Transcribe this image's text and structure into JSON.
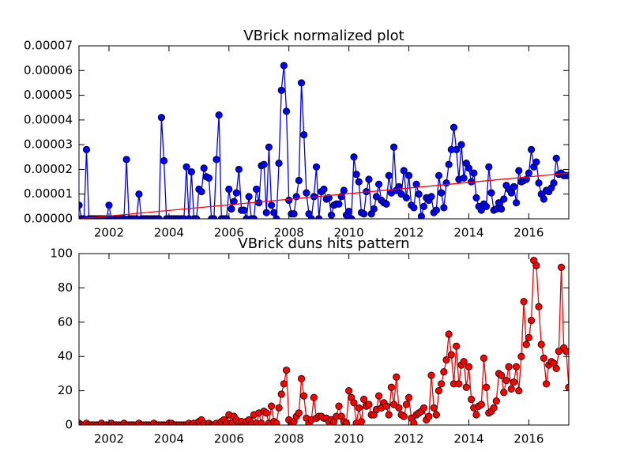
{
  "chart_data": [
    {
      "type": "line",
      "title": "VBrick normalized plot",
      "x": [
        2001,
        2001.083,
        2001.167,
        2001.25,
        2001.333,
        2001.417,
        2001.5,
        2001.583,
        2001.667,
        2001.75,
        2001.833,
        2001.917,
        2002,
        2002.083,
        2002.167,
        2002.25,
        2002.333,
        2002.417,
        2002.5,
        2002.583,
        2002.667,
        2002.75,
        2002.833,
        2002.917,
        2003,
        2003.083,
        2003.167,
        2003.25,
        2003.333,
        2003.417,
        2003.5,
        2003.583,
        2003.667,
        2003.75,
        2003.833,
        2003.917,
        2004,
        2004.083,
        2004.167,
        2004.25,
        2004.333,
        2004.417,
        2004.5,
        2004.583,
        2004.667,
        2004.75,
        2004.833,
        2004.917,
        2005,
        2005.083,
        2005.167,
        2005.25,
        2005.333,
        2005.417,
        2005.5,
        2005.583,
        2005.667,
        2005.75,
        2005.833,
        2005.917,
        2006,
        2006.083,
        2006.167,
        2006.25,
        2006.333,
        2006.417,
        2006.5,
        2006.583,
        2006.667,
        2006.75,
        2006.833,
        2006.917,
        2007,
        2007.083,
        2007.167,
        2007.25,
        2007.333,
        2007.417,
        2007.5,
        2007.583,
        2007.667,
        2007.75,
        2007.833,
        2007.917,
        2008,
        2008.083,
        2008.167,
        2008.25,
        2008.333,
        2008.417,
        2008.5,
        2008.583,
        2008.667,
        2008.75,
        2008.833,
        2008.917,
        2009,
        2009.083,
        2009.167,
        2009.25,
        2009.333,
        2009.417,
        2009.5,
        2009.583,
        2009.667,
        2009.75,
        2009.833,
        2009.917,
        2010,
        2010.083,
        2010.167,
        2010.25,
        2010.333,
        2010.417,
        2010.5,
        2010.583,
        2010.667,
        2010.75,
        2010.833,
        2010.917,
        2011,
        2011.083,
        2011.167,
        2011.25,
        2011.333,
        2011.417,
        2011.5,
        2011.583,
        2011.667,
        2011.75,
        2011.833,
        2011.917,
        2012,
        2012.083,
        2012.167,
        2012.25,
        2012.333,
        2012.417,
        2012.5,
        2012.583,
        2012.667,
        2012.75,
        2012.833,
        2012.917,
        2013,
        2013.083,
        2013.167,
        2013.25,
        2013.333,
        2013.417,
        2013.5,
        2013.583,
        2013.667,
        2013.75,
        2013.833,
        2013.917,
        2014,
        2014.083,
        2014.167,
        2014.25,
        2014.333,
        2014.417,
        2014.5,
        2014.583,
        2014.667,
        2014.75,
        2014.833,
        2014.917,
        2015,
        2015.083,
        2015.167,
        2015.25,
        2015.333,
        2015.417,
        2015.5,
        2015.583,
        2015.667,
        2015.75,
        2015.833,
        2015.917,
        2016,
        2016.083,
        2016.167,
        2016.25,
        2016.333,
        2016.417,
        2016.5,
        2016.583,
        2016.667,
        2016.75,
        2016.833,
        2016.917,
        2017,
        2017.083,
        2017.167,
        2017.25,
        2017.333
      ],
      "series": [
        {
          "color": "#0000ff",
          "marker": "o",
          "values": [
            5.5e-06,
            0,
            0,
            2.8e-05,
            0,
            0,
            0,
            0,
            0,
            0,
            0,
            0,
            5.5e-06,
            0,
            0,
            0,
            0,
            0,
            0,
            2.4e-05,
            0,
            0,
            0,
            0,
            1e-05,
            0,
            0,
            0,
            0,
            0,
            0,
            0,
            0,
            4.1e-05,
            2.35e-05,
            0,
            0,
            0,
            0,
            0,
            0,
            0,
            0,
            2.1e-05,
            0,
            1.9e-05,
            0,
            0,
            1.2e-05,
            1.1e-05,
            2.05e-05,
            1.7e-05,
            1.65e-05,
            0,
            0,
            2.4e-05,
            4.2e-05,
            0,
            0,
            0,
            1.2e-05,
            4e-06,
            7e-06,
            1.05e-05,
            2e-05,
            3.5e-06,
            3.5e-06,
            0,
            9e-06,
            0,
            0,
            1.2e-05,
            6.5e-06,
            2.15e-05,
            2.2e-05,
            2.5e-06,
            2.9e-05,
            5.5e-06,
            2.5e-06,
            0,
            2.25e-05,
            5.2e-05,
            6.2e-05,
            4.35e-05,
            7.5e-06,
            2e-06,
            2e-06,
            9e-06,
            1.55e-05,
            5.5e-05,
            3.4e-05,
            1.05e-05,
            2e-06,
            0,
            9e-06,
            2.1e-05,
            0,
            1.1e-05,
            1.2e-05,
            8e-06,
            8.5e-06,
            1.5e-06,
            5.5e-06,
            6e-06,
            6e-06,
            9e-06,
            1.15e-05,
            1.5e-06,
            3e-06,
            0,
            2.5e-05,
            1.8e-05,
            1.5e-05,
            2.5e-06,
            2e-06,
            1.1e-05,
            1.6e-05,
            2e-06,
            4e-06,
            9e-06,
            1.4e-05,
            7.5e-06,
            6.5e-06,
            6e-06,
            1.75e-05,
            1.05e-05,
            2.9e-05,
            1.15e-05,
            1.3e-05,
            1e-05,
            1.95e-05,
            8.5e-06,
            1.75e-05,
            5.5e-06,
            4.5e-06,
            1.4e-05,
            1e-05,
            1e-06,
            5e-06,
            8.5e-06,
            7.5e-06,
            9e-06,
            2.5e-06,
            3.5e-06,
            1.75e-05,
            1.05e-05,
            4.5e-06,
            1.45e-05,
            2.2e-05,
            2.8e-05,
            3.7e-05,
            2.8e-05,
            1.6e-05,
            3e-05,
            1.65e-05,
            2.25e-05,
            2.05e-05,
            1.5e-05,
            1.85e-05,
            8.5e-06,
            5e-06,
            3.5e-06,
            6e-06,
            5e-06,
            2.1e-05,
            1.05e-05,
            3.5e-06,
            4e-06,
            6.5e-06,
            4e-06,
            8e-06,
            1.35e-05,
            1.2e-05,
            1.05e-05,
            1.3e-05,
            6.5e-06,
            1.95e-05,
            1.5e-05,
            1.55e-05,
            1.6e-05,
            1.85e-05,
            2.8e-05,
            2.1e-05,
            2.3e-05,
            1.45e-05,
            1e-05,
            8e-06,
            1.15e-05,
            1.1e-05,
            1.25e-05,
            1.45e-05,
            2.45e-05,
            1.8e-05,
            1.85e-05,
            1.75e-05,
            1.75e-05,
            1.75e-05
          ]
        },
        {
          "color": "#ff0000",
          "x": [
            2001,
            2017.333
          ],
          "values": [
            0,
            1.85e-05
          ]
        }
      ],
      "xlim": [
        2001,
        2017.333
      ],
      "xticks": [
        2002,
        2004,
        2006,
        2008,
        2010,
        2012,
        2014,
        2016
      ],
      "ylim": [
        0,
        7e-05
      ],
      "yticks": [
        {
          "value": 0,
          "label": "0.00000"
        },
        {
          "value": 1e-05,
          "label": "0.00001"
        },
        {
          "value": 2e-05,
          "label": "0.00002"
        },
        {
          "value": 3e-05,
          "label": "0.00003"
        },
        {
          "value": 4e-05,
          "label": "0.00004"
        },
        {
          "value": 5e-05,
          "label": "0.00005"
        },
        {
          "value": 6e-05,
          "label": "0.00006"
        },
        {
          "value": 7e-05,
          "label": "0.00007"
        }
      ]
    },
    {
      "type": "line",
      "title": "VBrick duns hits pattern",
      "x": [
        2001,
        2001.083,
        2001.167,
        2001.25,
        2001.333,
        2001.417,
        2001.5,
        2001.583,
        2001.667,
        2001.75,
        2001.833,
        2001.917,
        2002,
        2002.083,
        2002.167,
        2002.25,
        2002.333,
        2002.417,
        2002.5,
        2002.583,
        2002.667,
        2002.75,
        2002.833,
        2002.917,
        2003,
        2003.083,
        2003.167,
        2003.25,
        2003.333,
        2003.417,
        2003.5,
        2003.583,
        2003.667,
        2003.75,
        2003.833,
        2003.917,
        2004,
        2004.083,
        2004.167,
        2004.25,
        2004.333,
        2004.417,
        2004.5,
        2004.583,
        2004.667,
        2004.75,
        2004.833,
        2004.917,
        2005,
        2005.083,
        2005.167,
        2005.25,
        2005.333,
        2005.417,
        2005.5,
        2005.583,
        2005.667,
        2005.75,
        2005.833,
        2005.917,
        2006,
        2006.083,
        2006.167,
        2006.25,
        2006.333,
        2006.417,
        2006.5,
        2006.583,
        2006.667,
        2006.75,
        2006.833,
        2006.917,
        2007,
        2007.083,
        2007.167,
        2007.25,
        2007.333,
        2007.417,
        2007.5,
        2007.583,
        2007.667,
        2007.75,
        2007.833,
        2007.917,
        2008,
        2008.083,
        2008.167,
        2008.25,
        2008.333,
        2008.417,
        2008.5,
        2008.583,
        2008.667,
        2008.75,
        2008.833,
        2008.917,
        2009,
        2009.083,
        2009.167,
        2009.25,
        2009.333,
        2009.417,
        2009.5,
        2009.583,
        2009.667,
        2009.75,
        2009.833,
        2009.917,
        2010,
        2010.083,
        2010.167,
        2010.25,
        2010.333,
        2010.417,
        2010.5,
        2010.583,
        2010.667,
        2010.75,
        2010.833,
        2010.917,
        2011,
        2011.083,
        2011.167,
        2011.25,
        2011.333,
        2011.417,
        2011.5,
        2011.583,
        2011.667,
        2011.75,
        2011.833,
        2011.917,
        2012,
        2012.083,
        2012.167,
        2012.25,
        2012.333,
        2012.417,
        2012.5,
        2012.583,
        2012.667,
        2012.75,
        2012.833,
        2012.917,
        2013,
        2013.083,
        2013.167,
        2013.25,
        2013.333,
        2013.417,
        2013.5,
        2013.583,
        2013.667,
        2013.75,
        2013.833,
        2013.917,
        2014,
        2014.083,
        2014.167,
        2014.25,
        2014.333,
        2014.417,
        2014.5,
        2014.583,
        2014.667,
        2014.75,
        2014.833,
        2014.917,
        2015,
        2015.083,
        2015.167,
        2015.25,
        2015.333,
        2015.417,
        2015.5,
        2015.583,
        2015.667,
        2015.75,
        2015.833,
        2015.917,
        2016,
        2016.083,
        2016.167,
        2016.25,
        2016.333,
        2016.417,
        2016.5,
        2016.583,
        2016.667,
        2016.75,
        2016.833,
        2016.917,
        2017,
        2017.083,
        2017.167,
        2017.25,
        2017.333
      ],
      "series": [
        {
          "color": "#ff0000",
          "marker": "o",
          "values": [
            1,
            0,
            0,
            1,
            0,
            0,
            0,
            0,
            0,
            1,
            0,
            0,
            0,
            1,
            0,
            0,
            0,
            0,
            1,
            0,
            0,
            0,
            0,
            0,
            1,
            0,
            0,
            0,
            0,
            0,
            1,
            0,
            0,
            0,
            0,
            0,
            1,
            1,
            0,
            0,
            0,
            0,
            0,
            0,
            1,
            0,
            1,
            0,
            2,
            3,
            1,
            0,
            1,
            0,
            0,
            1,
            0,
            2,
            3,
            1,
            6,
            1,
            5,
            3,
            1,
            2,
            0,
            2,
            3,
            1,
            6,
            1,
            7,
            1,
            8,
            7,
            1,
            11,
            2,
            1,
            10,
            18,
            24,
            32,
            3,
            1,
            2,
            5,
            7,
            27,
            17,
            4,
            1,
            3,
            16,
            4,
            5,
            5,
            4,
            4,
            2,
            3,
            2,
            5,
            11,
            5,
            2,
            1,
            20,
            16,
            13,
            1,
            10,
            2,
            15,
            11,
            12,
            6,
            6,
            9,
            17,
            10,
            13,
            11,
            6,
            22,
            12,
            28,
            10,
            6,
            5,
            12,
            16,
            4,
            1,
            6,
            7,
            8,
            10,
            3,
            5,
            29,
            10,
            6,
            20,
            24,
            31,
            38,
            53,
            41,
            24,
            46,
            24,
            35,
            37,
            22,
            34,
            15,
            10,
            6,
            11,
            12,
            39,
            22,
            7,
            8,
            10,
            14,
            30,
            29,
            19,
            26,
            34,
            21,
            25,
            34,
            20,
            40,
            72,
            47,
            51,
            61,
            96,
            93,
            69,
            47,
            39,
            24,
            35,
            37,
            36,
            33,
            43,
            92,
            45,
            43,
            22
          ]
        }
      ],
      "xlim": [
        2001,
        2017.333
      ],
      "xticks": [
        2002,
        2004,
        2006,
        2008,
        2010,
        2012,
        2014,
        2016
      ],
      "ylim": [
        0,
        100
      ],
      "yticks": [
        0,
        20,
        40,
        60,
        80,
        100
      ]
    }
  ]
}
